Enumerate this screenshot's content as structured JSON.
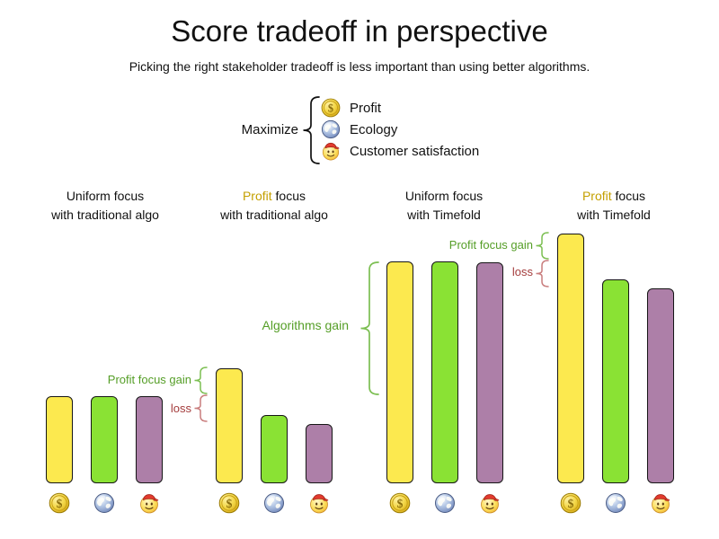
{
  "title": "Score tradeoff in perspective",
  "subtitle": "Picking the right stakeholder tradeoff is less important than using better algorithms.",
  "legend": {
    "label": "Maximize",
    "items": [
      {
        "icon": "profit-coin-icon",
        "label": "Profit"
      },
      {
        "icon": "ecology-globe-icon",
        "label": "Ecology"
      },
      {
        "icon": "customer-satisfaction-icon",
        "label": "Customer satisfaction"
      }
    ]
  },
  "groups": [
    {
      "line1_accent": "",
      "line1_rest": "Uniform focus",
      "line2": "with traditional algo"
    },
    {
      "line1_accent": "Profit",
      "line1_rest": " focus",
      "line2": "with traditional algo"
    },
    {
      "line1_accent": "",
      "line1_rest": "Uniform focus",
      "line2": "with Timefold"
    },
    {
      "line1_accent": "Profit",
      "line1_rest": " focus",
      "line2": "with Timefold"
    }
  ],
  "annotations": {
    "profit_gain_label": "Profit focus gain",
    "loss_label": "loss",
    "algorithms_gain_label": "Algorithms gain"
  },
  "colors": {
    "profit_bar": "#FCE94F",
    "ecology_bar": "#8AE234",
    "customer_bar": "#AD7FA8",
    "profit_accent_text": "#C4A000",
    "gain_text": "#559E27",
    "gain_brace": "#7CBF52",
    "loss_text": "#A43D3D",
    "loss_brace": "#C97D7D",
    "text": "#111111"
  },
  "chart_data": {
    "type": "bar",
    "title": "Score tradeoff in perspective",
    "subtitle": "Picking the right stakeholder tradeoff is less important than using better algorithms.",
    "series": [
      "Profit",
      "Ecology",
      "Customer satisfaction"
    ],
    "categories": [
      "Uniform focus with traditional algo",
      "Profit focus with traditional algo",
      "Uniform focus with Timefold",
      "Profit focus with Timefold"
    ],
    "values_relative": [
      [
        97,
        97,
        97
      ],
      [
        128,
        76,
        66
      ],
      [
        247,
        247,
        246
      ],
      [
        278,
        227,
        217
      ]
    ],
    "value_note": "no numeric axis shown; values are relative bar heights in screen px",
    "annotations": [
      {
        "text": "Profit focus gain",
        "color": "green",
        "target": "Profit focus with traditional algo"
      },
      {
        "text": "loss",
        "color": "red",
        "target": "Profit focus with traditional algo"
      },
      {
        "text": "Algorithms gain",
        "color": "green",
        "target": "Uniform focus with Timefold"
      },
      {
        "text": "Profit focus gain",
        "color": "green",
        "target": "Profit focus with Timefold"
      },
      {
        "text": "loss",
        "color": "red",
        "target": "Profit focus with Timefold"
      }
    ],
    "legend_position": "top-center",
    "grid": false,
    "xlabel": "",
    "ylabel": ""
  }
}
